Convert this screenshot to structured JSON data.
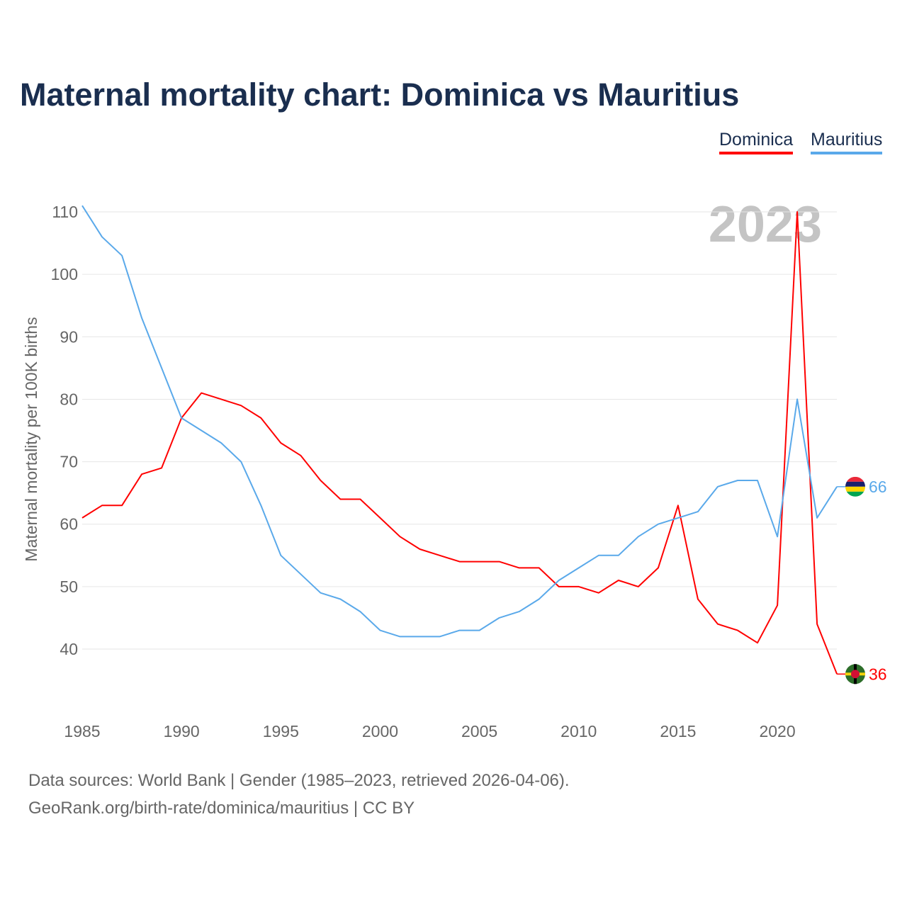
{
  "chart_data": {
    "type": "line",
    "title": "Maternal mortality chart: Dominica vs Mauritius",
    "xlabel": "",
    "ylabel": "Maternal mortality per 100K births",
    "year_label": "2023",
    "x": [
      1985,
      1986,
      1987,
      1988,
      1989,
      1990,
      1991,
      1992,
      1993,
      1994,
      1995,
      1996,
      1997,
      1998,
      1999,
      2000,
      2001,
      2002,
      2003,
      2004,
      2005,
      2006,
      2007,
      2008,
      2009,
      2010,
      2011,
      2012,
      2013,
      2014,
      2015,
      2016,
      2017,
      2018,
      2019,
      2020,
      2021,
      2022,
      2023
    ],
    "series": [
      {
        "name": "Dominica",
        "color": "#ff0000",
        "end_label": "36",
        "values": [
          61,
          63,
          63,
          68,
          69,
          77,
          81,
          80,
          79,
          77,
          73,
          71,
          67,
          64,
          64,
          61,
          58,
          56,
          55,
          54,
          54,
          54,
          53,
          53,
          50,
          50,
          49,
          51,
          50,
          53,
          63,
          48,
          44,
          43,
          41,
          47,
          110,
          44,
          36
        ]
      },
      {
        "name": "Mauritius",
        "color": "#5aa9ea",
        "end_label": "66",
        "values": [
          111,
          106,
          103,
          93,
          85,
          77,
          75,
          73,
          70,
          63,
          55,
          52,
          49,
          48,
          46,
          43,
          42,
          42,
          42,
          43,
          43,
          45,
          46,
          48,
          51,
          53,
          55,
          55,
          58,
          60,
          61,
          62,
          66,
          67,
          67,
          58,
          80,
          61,
          66
        ]
      }
    ],
    "xticks": [
      "1985",
      "1990",
      "1995",
      "2000",
      "2005",
      "2010",
      "2015",
      "2020"
    ],
    "yticks": [
      "40",
      "50",
      "60",
      "70",
      "80",
      "90",
      "100",
      "110"
    ],
    "xlim": [
      1985,
      2023
    ],
    "ylim": [
      30,
      112
    ],
    "grid": true,
    "legend_position": "top-right"
  },
  "footer": {
    "source": "Data sources: World Bank | Gender (1985–2023, retrieved 2026-04-06).",
    "credit": "GeoRank.org/birth-rate/dominica/mauritius | CC BY"
  }
}
